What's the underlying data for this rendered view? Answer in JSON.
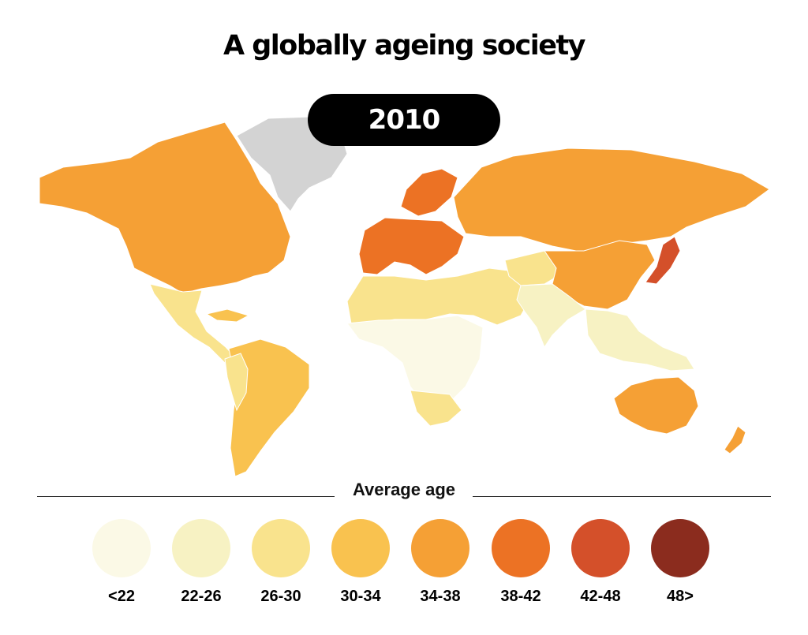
{
  "title": "A globally ageing society",
  "year": "2010",
  "legend": {
    "title": "Average age",
    "items": [
      {
        "label": "<22",
        "color": "#fbf9e6"
      },
      {
        "label": "22-26",
        "color": "#f7f2c3"
      },
      {
        "label": "26-30",
        "color": "#f9e38d"
      },
      {
        "label": "30-34",
        "color": "#f9c24f"
      },
      {
        "label": "34-38",
        "color": "#f5a035"
      },
      {
        "label": "38-42",
        "color": "#ec7224"
      },
      {
        "label": "42-48",
        "color": "#d4502a"
      },
      {
        "label": "48>",
        "color": "#8b2c1e"
      }
    ]
  },
  "map": {
    "no_data_color": "#d3d3d3",
    "regions": [
      {
        "name": "north-america",
        "class": "34-38"
      },
      {
        "name": "greenland",
        "class": "no-data"
      },
      {
        "name": "central-america",
        "class": "26-30"
      },
      {
        "name": "caribbean",
        "class": "30-34"
      },
      {
        "name": "south-america",
        "class": "30-34"
      },
      {
        "name": "andes",
        "class": "26-30"
      },
      {
        "name": "western-europe",
        "class": "38-42"
      },
      {
        "name": "scandinavia",
        "class": "38-42"
      },
      {
        "name": "russia",
        "class": "34-38"
      },
      {
        "name": "north-africa-middle-east",
        "class": "26-30"
      },
      {
        "name": "sub-saharan-africa",
        "class": "<22"
      },
      {
        "name": "southern-africa",
        "class": "26-30"
      },
      {
        "name": "central-asia",
        "class": "26-30"
      },
      {
        "name": "china",
        "class": "34-38"
      },
      {
        "name": "south-asia",
        "class": "22-26"
      },
      {
        "name": "southeast-asia",
        "class": "22-26"
      },
      {
        "name": "japan",
        "class": "42-48"
      },
      {
        "name": "australia",
        "class": "34-38"
      },
      {
        "name": "new-zealand",
        "class": "34-38"
      }
    ]
  }
}
